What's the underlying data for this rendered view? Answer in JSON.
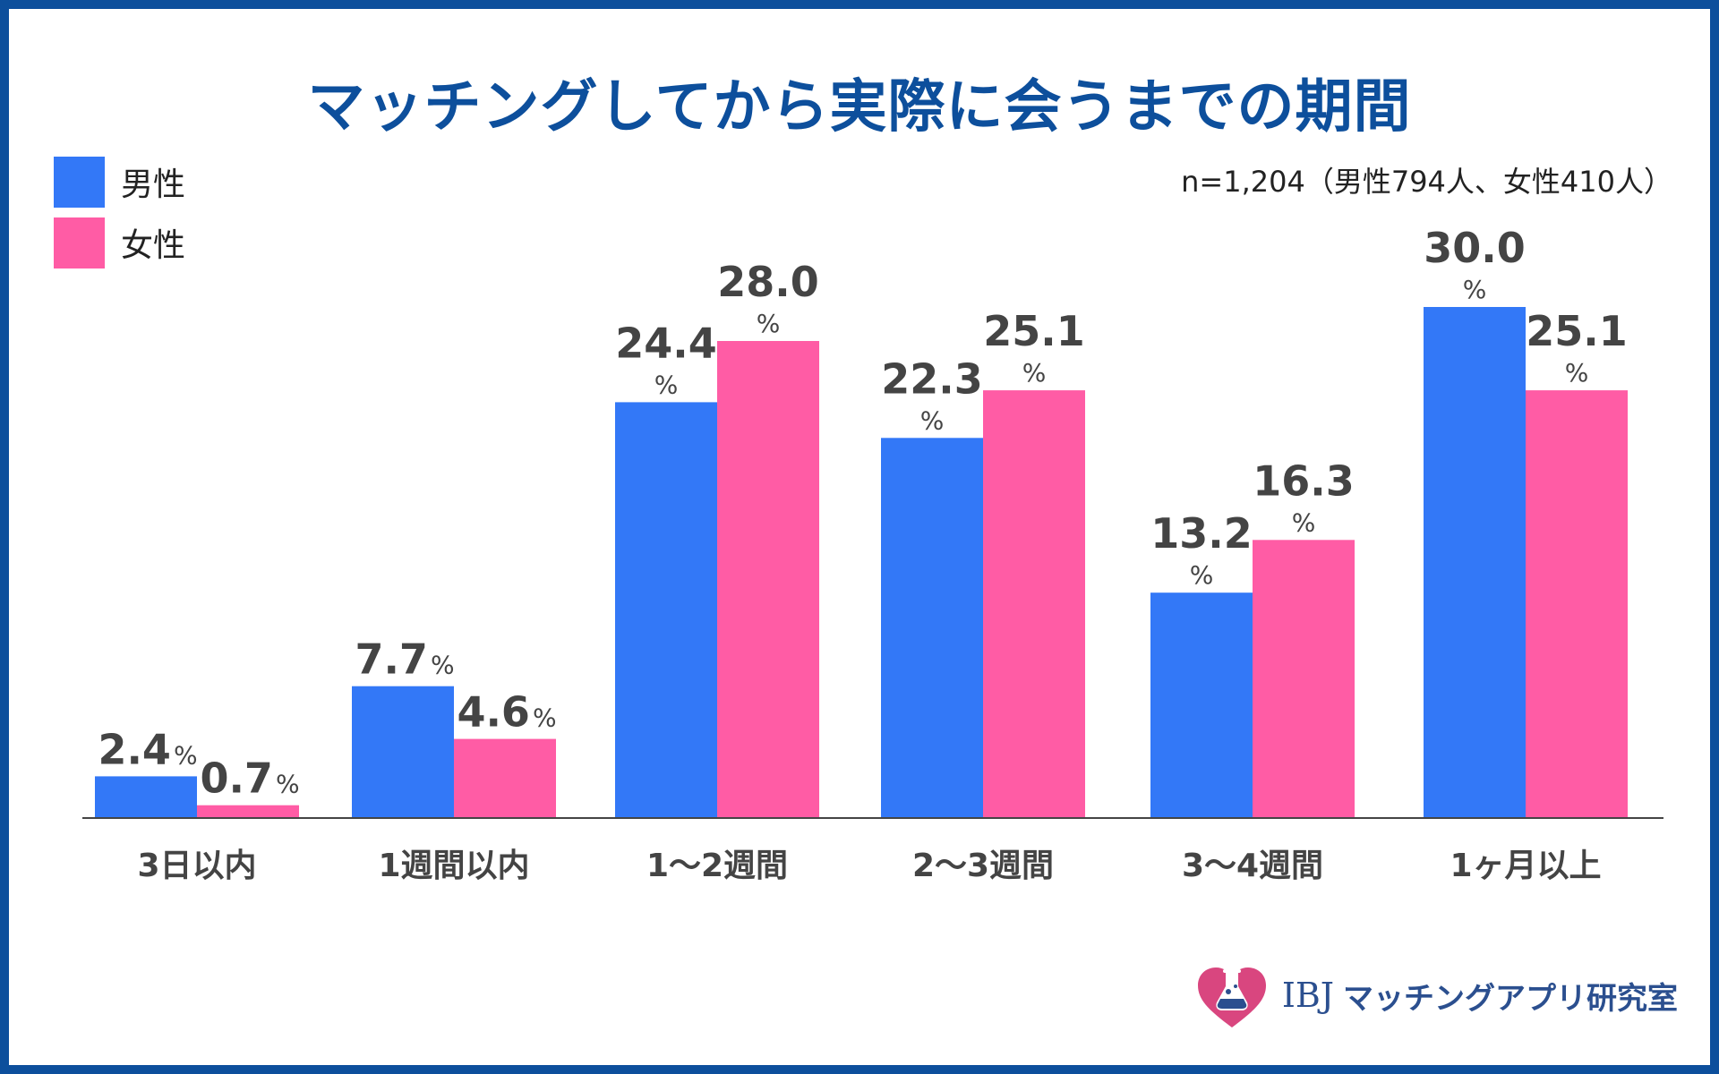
{
  "chart_data": {
    "type": "bar",
    "title": "マッチングしてから実際に会うまでの期間",
    "categories": [
      "3日以内",
      "1週間以内",
      "1〜2週間",
      "2〜3週間",
      "3〜4週間",
      "1ヶ月以上"
    ],
    "series": [
      {
        "name": "男性",
        "color": "#3378f7",
        "values": [
          2.4,
          7.7,
          24.4,
          22.3,
          13.2,
          30.0
        ]
      },
      {
        "name": "女性",
        "color": "#ff5ca5",
        "values": [
          0.7,
          4.6,
          28.0,
          25.1,
          16.3,
          25.1
        ]
      }
    ],
    "value_labels": [
      [
        "2.4",
        "7.7",
        "24.4",
        "22.3",
        "13.2",
        "30.0"
      ],
      [
        "0.7",
        "4.6",
        "28.0",
        "25.1",
        "16.3",
        "25.1"
      ]
    ],
    "unit": "%",
    "ylim": [
      0,
      30
    ],
    "xlabel": "",
    "ylabel": "",
    "grid": false,
    "legend_position": "top-left"
  },
  "legend": {
    "items": [
      {
        "label": "男性",
        "color": "#3378f7"
      },
      {
        "label": "女性",
        "color": "#ff5ca5"
      }
    ]
  },
  "sample_note": "n=1,204（男性794人、女性410人）",
  "logo": {
    "brand": "IBJ",
    "name": "マッチングアプリ研究室"
  },
  "colors": {
    "frame": "#0d4f9c",
    "title": "#0d4f9c",
    "label_text": "#444444",
    "logo_text": "#2b4f8f",
    "logo_heart": "#d9467f"
  }
}
